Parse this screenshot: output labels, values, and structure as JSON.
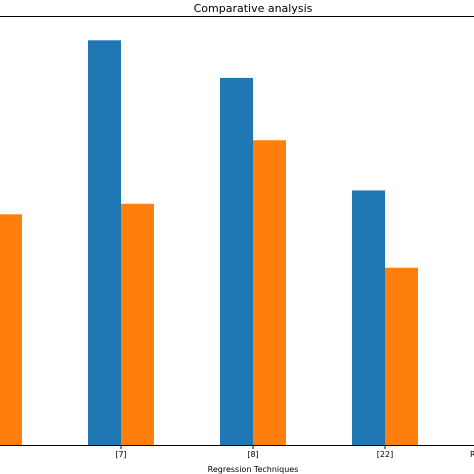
{
  "chart_data": {
    "type": "bar",
    "title": "Comparative analysis",
    "xlabel": "Regression Techniques",
    "ylabel": "",
    "categories": [
      "",
      "[7]",
      "[8]",
      "[22]",
      ""
    ],
    "edge_tick_partial": "R",
    "series": [
      {
        "values": [
          null,
          100,
          90.7,
          62.9,
          null
        ],
        "color": "#1f77b4"
      },
      {
        "values": [
          57.0,
          59.6,
          75.3,
          43.8,
          null
        ],
        "color": "#ff7f0e"
      }
    ],
    "ylim": [
      0,
      106
    ],
    "grid": false,
    "legend": "none"
  }
}
